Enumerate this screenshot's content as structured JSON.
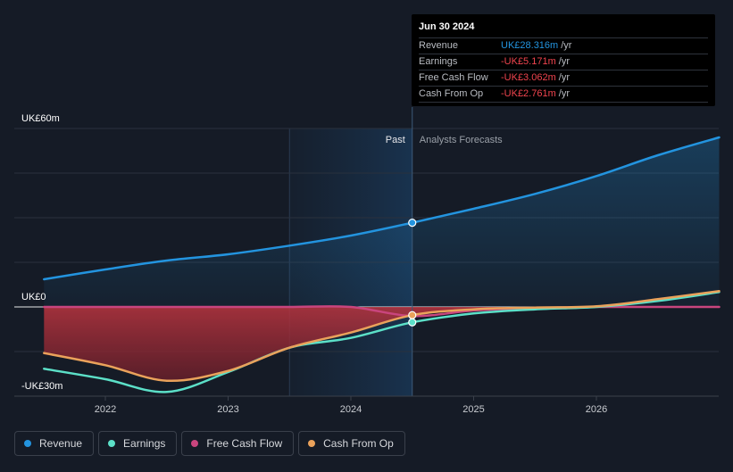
{
  "colors": {
    "revenue": "#2394df",
    "earnings": "#5ce0c8",
    "free_cash_flow": "#c9457e",
    "cash_from_op": "#eaa25b",
    "background": "#151b26"
  },
  "tooltip": {
    "date": "Jun 30 2024",
    "rows": [
      {
        "label": "Revenue",
        "value": "UK£28.316m",
        "unit": "/yr",
        "color": "#2394df"
      },
      {
        "label": "Earnings",
        "value": "-UK£5.171m",
        "unit": "/yr",
        "color": "#f0444e"
      },
      {
        "label": "Free Cash Flow",
        "value": "-UK£3.062m",
        "unit": "/yr",
        "color": "#f0444e"
      },
      {
        "label": "Cash From Op",
        "value": "-UK£2.761m",
        "unit": "/yr",
        "color": "#f0444e"
      }
    ]
  },
  "legend": [
    {
      "label": "Revenue",
      "color": "#2394df"
    },
    {
      "label": "Earnings",
      "color": "#5ce0c8"
    },
    {
      "label": "Free Cash Flow",
      "color": "#c9457e"
    },
    {
      "label": "Cash From Op",
      "color": "#eaa25b"
    }
  ],
  "chart_data": {
    "type": "line",
    "title": "",
    "xlabel": "",
    "ylabel": "",
    "y_unit": "UK£m",
    "ylim": [
      -30,
      60
    ],
    "xlim": [
      2021.5,
      2027.0
    ],
    "y_tick_labels": [
      {
        "value": 60,
        "label": "UK£60m"
      },
      {
        "value": 0,
        "label": "UK£0"
      },
      {
        "value": -30,
        "label": "-UK£30m"
      }
    ],
    "x_ticks": [
      {
        "value": 2022,
        "label": "2022"
      },
      {
        "value": 2023,
        "label": "2023"
      },
      {
        "value": 2024,
        "label": "2024"
      },
      {
        "value": 2025,
        "label": "2025"
      },
      {
        "value": 2026,
        "label": "2026"
      }
    ],
    "grid": true,
    "divider_x": 2024.5,
    "past_label": "Past",
    "forecast_label": "Analysts Forecasts",
    "highlight_start_x": 2023.5,
    "series": [
      {
        "name": "Revenue",
        "key": "revenue",
        "points": [
          [
            2021.5,
            9.3
          ],
          [
            2022.0,
            12.6
          ],
          [
            2022.5,
            15.6
          ],
          [
            2023.0,
            17.7
          ],
          [
            2023.5,
            20.6
          ],
          [
            2024.0,
            24.0
          ],
          [
            2024.5,
            28.316
          ],
          [
            2025.0,
            33.0
          ],
          [
            2025.5,
            38.0
          ],
          [
            2026.0,
            44.0
          ],
          [
            2026.5,
            51.0
          ],
          [
            2027.0,
            57.0
          ]
        ]
      },
      {
        "name": "Earnings",
        "key": "earnings",
        "points": [
          [
            2021.5,
            -20.8
          ],
          [
            2022.0,
            -24.3
          ],
          [
            2022.5,
            -28.6
          ],
          [
            2023.0,
            -21.9
          ],
          [
            2023.5,
            -13.7
          ],
          [
            2024.0,
            -10.4
          ],
          [
            2024.5,
            -5.171
          ],
          [
            2025.0,
            -2.2
          ],
          [
            2025.5,
            -0.8
          ],
          [
            2026.0,
            0.0
          ],
          [
            2026.5,
            2.0
          ],
          [
            2027.0,
            5.0
          ]
        ]
      },
      {
        "name": "Free Cash Flow",
        "key": "free_cash_flow",
        "points": [
          [
            2021.5,
            0.0
          ],
          [
            2022.0,
            0.0
          ],
          [
            2022.5,
            0.0
          ],
          [
            2023.0,
            0.0
          ],
          [
            2023.5,
            0.0
          ],
          [
            2024.0,
            0.0
          ],
          [
            2024.5,
            -3.062
          ],
          [
            2025.0,
            -1.2
          ],
          [
            2025.5,
            -0.4
          ],
          [
            2026.0,
            0.0
          ],
          [
            2026.5,
            0.0
          ],
          [
            2027.0,
            0.0
          ]
        ]
      },
      {
        "name": "Cash From Op",
        "key": "cash_from_op",
        "points": [
          [
            2021.5,
            -15.5
          ],
          [
            2022.0,
            -19.6
          ],
          [
            2022.5,
            -24.8
          ],
          [
            2023.0,
            -21.5
          ],
          [
            2023.5,
            -13.7
          ],
          [
            2024.0,
            -8.6
          ],
          [
            2024.5,
            -2.761
          ],
          [
            2025.0,
            -0.8
          ],
          [
            2025.5,
            -0.2
          ],
          [
            2026.0,
            0.2
          ],
          [
            2026.5,
            2.6
          ],
          [
            2027.0,
            5.3
          ]
        ]
      }
    ],
    "free_cash_flow_area": {
      "name": "Free Cash Flow",
      "points": [
        [
          2021.5,
          0.0
        ],
        [
          2021.5,
          -16.0
        ],
        [
          2022.0,
          -19.6
        ],
        [
          2022.5,
          -24.8
        ],
        [
          2023.0,
          -21.5
        ],
        [
          2023.5,
          -13.7
        ],
        [
          2024.0,
          -8.6
        ],
        [
          2024.5,
          -3.062
        ],
        [
          2025.0,
          -1.2
        ],
        [
          2025.5,
          -0.4
        ],
        [
          2026.0,
          0.0
        ]
      ]
    },
    "highlight_point_x": 2024.5
  }
}
